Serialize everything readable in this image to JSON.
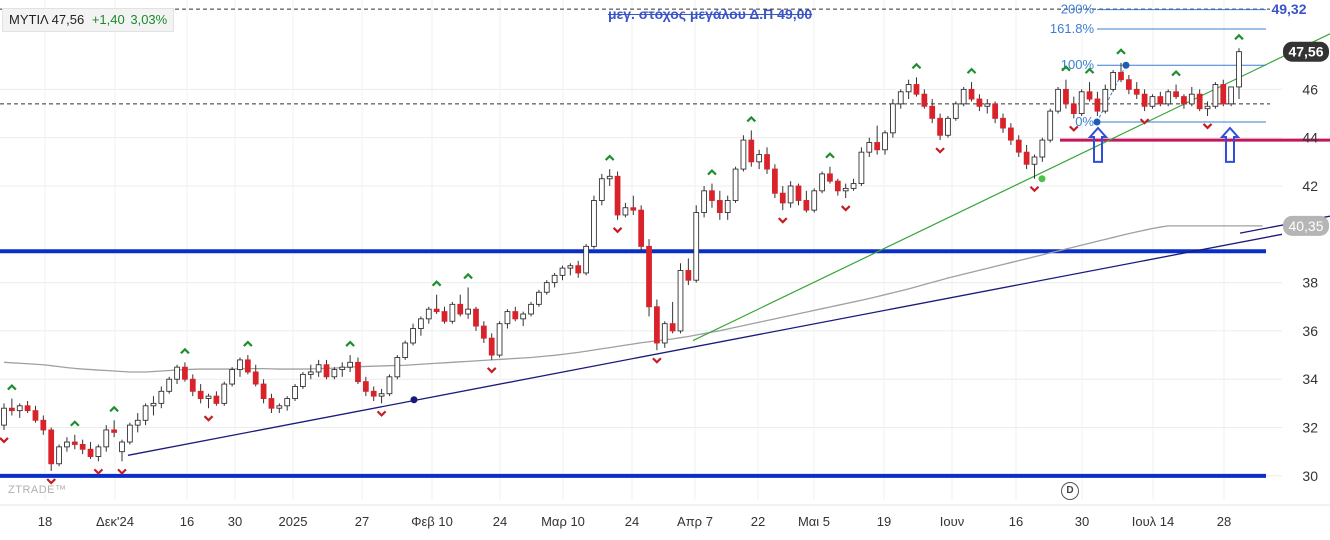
{
  "ticker": {
    "symbol": "ΜΥΤΙΛ",
    "price": "47,56",
    "change": "+1,40",
    "change_pct": "3,03%"
  },
  "watermark": "ZTRADE™",
  "annotation": "μεγ. στόχος μεγάλου Δ.Π 49,00",
  "event_icon": "D",
  "colors": {
    "up": "#ffffff",
    "down": "#d9222a",
    "wick": "#333333",
    "hline": "#0a2fc9",
    "support": "#1a1a7a",
    "trend": "#3aa53a",
    "ma": "#a0a0a0",
    "fib": "#3a7fd5",
    "level44": "#c2185b",
    "target": "#3a55c8"
  },
  "chart_data": {
    "type": "candlestick",
    "x_labels": [
      "18",
      "Δεκ'24",
      "16",
      "30",
      "2025",
      "27",
      "Φεβ 10",
      "24",
      "Μαρ 10",
      "24",
      "Απρ 7",
      "22",
      "Μαι 5",
      "19",
      "Ιουν",
      "16",
      "30",
      "Ιουλ 14",
      "28"
    ],
    "y_ticks": [
      "30",
      "32",
      "34",
      "36",
      "38",
      "42",
      "44",
      "46"
    ],
    "ylim": [
      29,
      49.7
    ],
    "price_tags": [
      {
        "label": "47,56",
        "value": 47.56,
        "style": "dark"
      },
      {
        "label": "40,35",
        "value": 40.35,
        "style": "grey"
      },
      {
        "label": "49,32",
        "value": 49.32,
        "style": "text"
      }
    ],
    "fib_levels": [
      {
        "label": "200%",
        "value": 49.3
      },
      {
        "label": "161.8%",
        "value": 48.5
      },
      {
        "label": "100%",
        "value": 47.0
      },
      {
        "label": "0%",
        "value": 44.65
      }
    ],
    "horizontal_lines": [
      {
        "name": "support-upper",
        "value": 39.3
      },
      {
        "name": "support-lower",
        "value": 30.0
      },
      {
        "name": "level-44",
        "value": 43.9
      }
    ],
    "dashed_levels": [
      49.32,
      45.4
    ],
    "candles": [
      [
        32.1,
        33.0,
        31.9,
        32.8
      ],
      [
        32.8,
        33.2,
        32.5,
        32.7
      ],
      [
        32.7,
        33.0,
        32.4,
        32.9
      ],
      [
        32.9,
        33.1,
        32.6,
        32.7
      ],
      [
        32.7,
        32.9,
        32.2,
        32.3
      ],
      [
        32.3,
        32.5,
        31.7,
        31.9
      ],
      [
        31.9,
        32.0,
        30.2,
        30.5
      ],
      [
        30.5,
        31.3,
        30.4,
        31.2
      ],
      [
        31.2,
        31.6,
        31.0,
        31.4
      ],
      [
        31.4,
        31.7,
        31.1,
        31.3
      ],
      [
        31.3,
        31.5,
        30.9,
        31.1
      ],
      [
        31.1,
        31.4,
        30.7,
        30.8
      ],
      [
        30.8,
        31.3,
        30.6,
        31.2
      ],
      [
        31.2,
        32.1,
        31.0,
        31.9
      ],
      [
        31.9,
        32.3,
        31.6,
        31.8
      ],
      [
        31.0,
        31.5,
        30.6,
        31.4
      ],
      [
        31.4,
        32.2,
        31.3,
        32.1
      ],
      [
        32.1,
        32.6,
        31.8,
        32.3
      ],
      [
        32.3,
        33.0,
        32.1,
        32.9
      ],
      [
        32.9,
        33.3,
        32.5,
        33.0
      ],
      [
        33.0,
        33.7,
        32.8,
        33.5
      ],
      [
        33.5,
        34.1,
        33.4,
        34.0
      ],
      [
        34.0,
        34.6,
        33.8,
        34.5
      ],
      [
        34.5,
        34.7,
        33.9,
        34.0
      ],
      [
        34.0,
        34.2,
        33.3,
        33.5
      ],
      [
        33.5,
        33.8,
        33.0,
        33.2
      ],
      [
        33.2,
        33.4,
        32.8,
        33.3
      ],
      [
        33.3,
        33.5,
        32.9,
        33.0
      ],
      [
        33.0,
        33.9,
        32.9,
        33.8
      ],
      [
        33.8,
        34.5,
        33.7,
        34.4
      ],
      [
        34.4,
        34.9,
        34.1,
        34.8
      ],
      [
        34.8,
        35.0,
        34.2,
        34.3
      ],
      [
        34.3,
        34.6,
        33.7,
        33.8
      ],
      [
        33.8,
        34.0,
        33.0,
        33.2
      ],
      [
        33.2,
        33.4,
        32.6,
        32.8
      ],
      [
        32.8,
        33.0,
        32.6,
        32.9
      ],
      [
        32.9,
        33.3,
        32.7,
        33.2
      ],
      [
        33.2,
        33.8,
        33.1,
        33.7
      ],
      [
        33.7,
        34.3,
        33.6,
        34.2
      ],
      [
        34.2,
        34.6,
        34.0,
        34.3
      ],
      [
        34.3,
        34.8,
        34.1,
        34.6
      ],
      [
        34.6,
        34.8,
        34.0,
        34.1
      ],
      [
        34.1,
        34.5,
        34.0,
        34.4
      ],
      [
        34.4,
        34.7,
        34.1,
        34.5
      ],
      [
        34.5,
        35.0,
        34.3,
        34.7
      ],
      [
        34.7,
        34.9,
        33.8,
        33.9
      ],
      [
        33.9,
        34.1,
        33.3,
        33.5
      ],
      [
        33.5,
        33.7,
        33.1,
        33.3
      ],
      [
        33.3,
        33.6,
        33.0,
        33.4
      ],
      [
        33.4,
        34.2,
        33.3,
        34.1
      ],
      [
        34.1,
        35.0,
        34.0,
        34.9
      ],
      [
        34.9,
        35.6,
        34.8,
        35.5
      ],
      [
        35.5,
        36.3,
        35.4,
        36.1
      ],
      [
        36.1,
        36.6,
        35.8,
        36.5
      ],
      [
        36.5,
        37.0,
        36.3,
        36.9
      ],
      [
        36.9,
        37.5,
        36.7,
        36.8
      ],
      [
        36.8,
        37.0,
        36.3,
        36.4
      ],
      [
        36.4,
        37.2,
        36.3,
        37.1
      ],
      [
        37.1,
        37.5,
        36.6,
        36.7
      ],
      [
        36.7,
        37.8,
        36.5,
        36.9
      ],
      [
        36.9,
        37.0,
        36.0,
        36.2
      ],
      [
        36.2,
        36.4,
        35.5,
        35.7
      ],
      [
        35.7,
        35.9,
        34.8,
        35.0
      ],
      [
        35.0,
        36.4,
        34.9,
        36.3
      ],
      [
        36.3,
        36.9,
        36.1,
        36.8
      ],
      [
        36.8,
        37.0,
        36.4,
        36.5
      ],
      [
        36.5,
        36.8,
        36.2,
        36.7
      ],
      [
        36.7,
        37.2,
        36.6,
        37.1
      ],
      [
        37.1,
        37.7,
        37.0,
        37.6
      ],
      [
        37.6,
        38.1,
        37.5,
        38.0
      ],
      [
        38.0,
        38.4,
        37.8,
        38.3
      ],
      [
        38.3,
        38.7,
        38.1,
        38.6
      ],
      [
        38.6,
        38.8,
        38.3,
        38.7
      ],
      [
        38.7,
        38.9,
        38.2,
        38.4
      ],
      [
        38.4,
        39.6,
        38.3,
        39.5
      ],
      [
        39.5,
        41.6,
        39.4,
        41.4
      ],
      [
        41.4,
        42.5,
        41.2,
        42.3
      ],
      [
        42.3,
        42.7,
        42.0,
        42.4
      ],
      [
        42.4,
        42.6,
        40.6,
        40.8
      ],
      [
        40.8,
        41.3,
        40.7,
        41.1
      ],
      [
        41.1,
        41.6,
        40.8,
        41.0
      ],
      [
        41.0,
        41.2,
        39.3,
        39.5
      ],
      [
        39.5,
        39.8,
        36.6,
        37.0
      ],
      [
        37.0,
        37.3,
        35.2,
        35.5
      ],
      [
        35.5,
        36.4,
        35.3,
        36.3
      ],
      [
        36.3,
        37.2,
        35.9,
        36.0
      ],
      [
        36.0,
        38.8,
        35.9,
        38.5
      ],
      [
        38.5,
        39.0,
        37.9,
        38.1
      ],
      [
        38.1,
        41.2,
        38.0,
        40.9
      ],
      [
        40.9,
        42.0,
        40.7,
        41.8
      ],
      [
        41.8,
        42.1,
        41.1,
        41.4
      ],
      [
        41.4,
        41.8,
        40.6,
        40.9
      ],
      [
        40.9,
        41.6,
        40.6,
        41.4
      ],
      [
        41.4,
        42.8,
        41.3,
        42.7
      ],
      [
        42.7,
        44.1,
        42.6,
        43.9
      ],
      [
        43.9,
        44.3,
        42.8,
        43.0
      ],
      [
        43.0,
        43.5,
        42.7,
        43.3
      ],
      [
        43.3,
        43.6,
        42.5,
        42.7
      ],
      [
        42.7,
        42.9,
        41.5,
        41.7
      ],
      [
        41.7,
        42.0,
        41.0,
        41.3
      ],
      [
        41.3,
        42.2,
        41.1,
        42.0
      ],
      [
        42.0,
        42.1,
        41.2,
        41.4
      ],
      [
        41.4,
        41.8,
        40.9,
        41.0
      ],
      [
        41.0,
        41.9,
        40.9,
        41.8
      ],
      [
        41.8,
        42.6,
        41.7,
        42.5
      ],
      [
        42.5,
        42.8,
        42.1,
        42.2
      ],
      [
        42.2,
        42.3,
        41.6,
        41.8
      ],
      [
        41.8,
        42.1,
        41.5,
        41.9
      ],
      [
        41.9,
        42.3,
        41.8,
        42.1
      ],
      [
        42.1,
        43.6,
        42.0,
        43.4
      ],
      [
        43.4,
        44.0,
        43.2,
        43.8
      ],
      [
        43.8,
        44.5,
        43.3,
        43.5
      ],
      [
        43.5,
        44.3,
        43.3,
        44.2
      ],
      [
        44.2,
        45.6,
        44.0,
        45.4
      ],
      [
        45.4,
        46.0,
        45.2,
        45.9
      ],
      [
        45.9,
        46.4,
        45.6,
        46.2
      ],
      [
        46.2,
        46.5,
        45.7,
        45.8
      ],
      [
        45.8,
        46.0,
        45.2,
        45.3
      ],
      [
        45.3,
        45.6,
        44.6,
        44.8
      ],
      [
        44.8,
        45.0,
        43.9,
        44.1
      ],
      [
        44.1,
        44.9,
        44.0,
        44.8
      ],
      [
        44.8,
        45.5,
        44.7,
        45.4
      ],
      [
        45.4,
        46.1,
        45.3,
        46.0
      ],
      [
        46.0,
        46.3,
        45.5,
        45.6
      ],
      [
        45.6,
        45.8,
        45.1,
        45.3
      ],
      [
        45.3,
        45.6,
        45.0,
        45.4
      ],
      [
        45.4,
        45.5,
        44.6,
        44.8
      ],
      [
        44.8,
        45.0,
        44.2,
        44.4
      ],
      [
        44.4,
        44.6,
        43.7,
        43.9
      ],
      [
        43.9,
        44.1,
        43.2,
        43.4
      ],
      [
        43.4,
        43.7,
        42.7,
        42.9
      ],
      [
        42.9,
        43.3,
        42.3,
        43.2
      ],
      [
        43.2,
        44.0,
        43.0,
        43.9
      ],
      [
        43.9,
        45.2,
        43.8,
        45.1
      ],
      [
        45.1,
        46.1,
        45.0,
        46.0
      ],
      [
        46.0,
        46.4,
        45.2,
        45.4
      ],
      [
        45.4,
        45.7,
        44.8,
        45.0
      ],
      [
        45.0,
        46.0,
        44.9,
        45.9
      ],
      [
        45.9,
        46.3,
        45.5,
        45.6
      ],
      [
        45.6,
        45.9,
        44.9,
        45.1
      ],
      [
        45.1,
        46.2,
        45.0,
        46.0
      ],
      [
        46.0,
        46.8,
        45.9,
        46.7
      ],
      [
        46.7,
        47.1,
        46.3,
        46.4
      ],
      [
        46.4,
        46.6,
        45.8,
        46.0
      ],
      [
        46.0,
        46.3,
        45.6,
        45.8
      ],
      [
        45.8,
        46.0,
        45.1,
        45.3
      ],
      [
        45.3,
        45.8,
        45.2,
        45.7
      ],
      [
        45.7,
        45.9,
        45.3,
        45.4
      ],
      [
        45.4,
        46.0,
        45.3,
        45.9
      ],
      [
        45.9,
        46.2,
        45.6,
        45.7
      ],
      [
        45.7,
        45.8,
        45.2,
        45.4
      ],
      [
        45.4,
        46.1,
        45.3,
        45.8
      ],
      [
        45.8,
        46.0,
        45.1,
        45.2
      ],
      [
        45.2,
        45.5,
        44.9,
        45.3
      ],
      [
        45.3,
        46.3,
        45.2,
        46.2
      ],
      [
        46.2,
        46.4,
        45.3,
        45.4
      ],
      [
        45.4,
        46.0,
        45.3,
        46.1
      ],
      [
        46.1,
        47.7,
        45.6,
        47.56
      ]
    ],
    "ma_values": [
      34.7,
      34.68,
      34.66,
      34.64,
      34.62,
      34.6,
      34.56,
      34.52,
      34.48,
      34.45,
      34.42,
      34.4,
      34.38,
      34.36,
      34.34,
      34.32,
      34.3,
      34.3,
      34.3,
      34.32,
      34.34,
      34.36,
      34.38,
      34.4,
      34.41,
      34.42,
      34.42,
      34.42,
      34.42,
      34.42,
      34.43,
      34.44,
      34.44,
      34.44,
      34.43,
      34.42,
      34.42,
      34.42,
      34.42,
      34.43,
      34.44,
      34.45,
      34.46,
      34.48,
      34.5,
      34.52,
      34.53,
      34.54,
      34.55,
      34.56,
      34.57,
      34.58,
      34.6,
      34.62,
      34.64,
      34.66,
      34.68,
      34.7,
      34.72,
      34.74,
      34.76,
      34.78,
      34.8,
      34.82,
      34.84,
      34.86,
      34.88,
      34.9,
      34.93,
      34.96,
      34.99,
      35.03,
      35.07,
      35.11,
      35.16,
      35.21,
      35.26,
      35.31,
      35.36,
      35.41,
      35.46,
      35.51,
      35.55,
      35.59,
      35.63,
      35.67,
      35.72,
      35.77,
      35.83,
      35.89,
      35.95,
      36.01,
      36.08,
      36.15,
      36.22,
      36.29,
      36.36,
      36.43,
      36.5,
      36.57,
      36.64,
      36.71,
      36.78,
      36.85,
      36.92,
      36.99,
      37.06,
      37.13,
      37.2,
      37.27,
      37.34,
      37.42,
      37.5,
      37.58,
      37.66,
      37.74,
      37.83,
      37.92,
      38.01,
      38.1,
      38.19,
      38.27,
      38.35,
      38.43,
      38.51,
      38.59,
      38.67,
      38.75,
      38.83,
      38.91,
      38.99,
      39.07,
      39.15,
      39.23,
      39.31,
      39.39,
      39.47,
      39.55,
      39.63,
      39.71,
      39.79,
      39.87,
      39.95,
      40.03,
      40.1,
      40.17,
      40.24,
      40.3,
      40.35,
      40.35,
      40.35,
      40.35,
      40.35,
      40.35,
      40.35,
      40.35,
      40.35,
      40.35,
      40.35,
      40.35,
      40.35
    ]
  }
}
